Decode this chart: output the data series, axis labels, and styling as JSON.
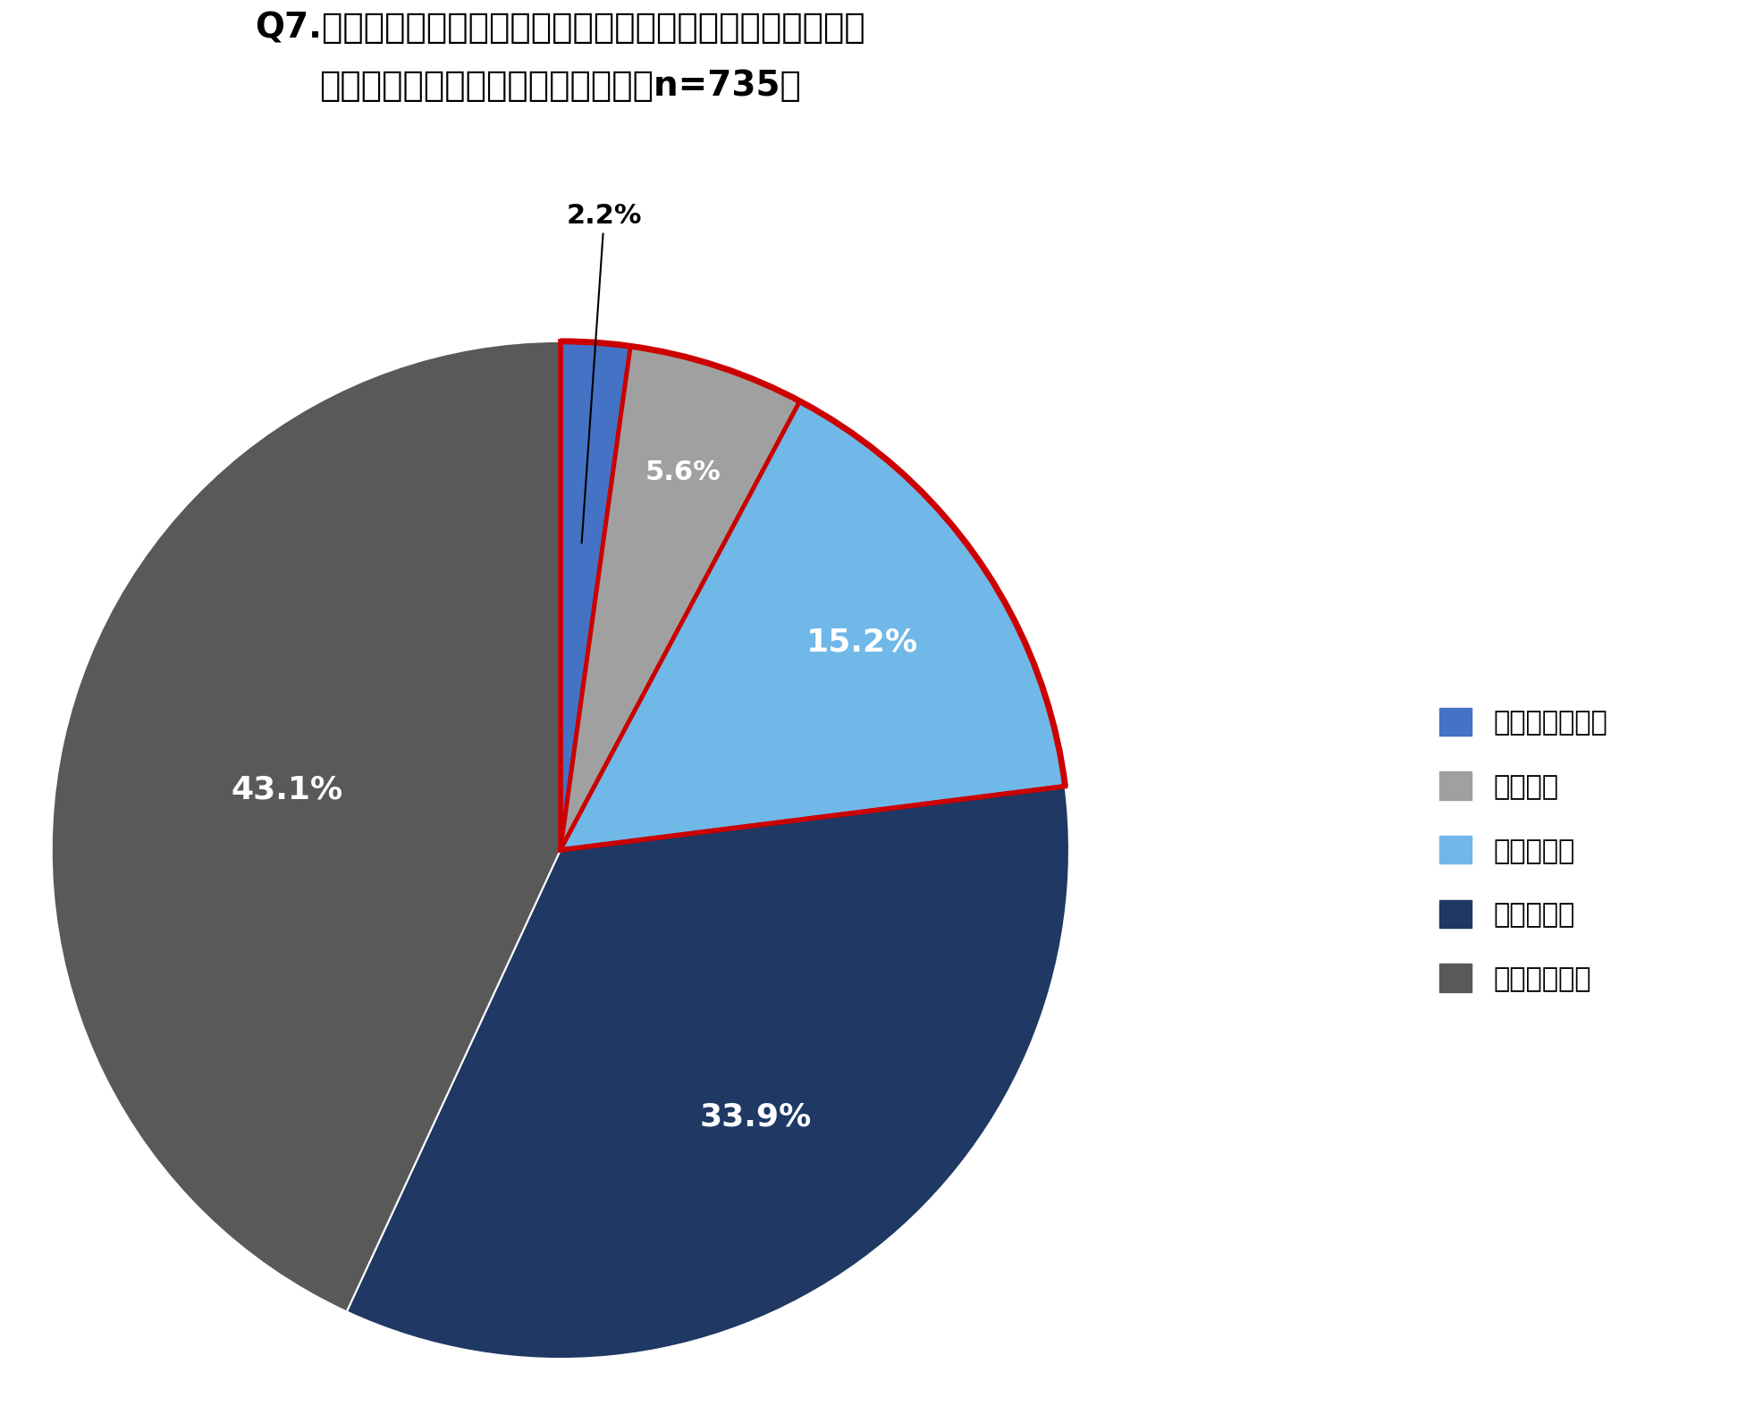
{
  "title_line1": "Q7.あなたはオンライン会議中に周辺の音について指摘された",
  "title_line2": "ことがありますか？　（単一回答、n=735）",
  "labels": [
    "とてもよくある",
    "よくある",
    "たまにある",
    "あまりない",
    "まったくない"
  ],
  "values": [
    2.2,
    5.6,
    15.2,
    33.9,
    43.1
  ],
  "colors": [
    "#4472C4",
    "#A0A0A0",
    "#70B8E8",
    "#1F3864",
    "#595959"
  ],
  "explode_indices": [
    0,
    1,
    2
  ],
  "red_border_color": "#CC0000",
  "background_color": "#FFFFFF",
  "text_color_inside": "#FFFFFF",
  "text_color_outside": "#000000",
  "pct_fontsize_large": 26,
  "pct_fontsize_small": 22,
  "title_fontsize": 28,
  "legend_fontsize": 22,
  "startangle": 90
}
